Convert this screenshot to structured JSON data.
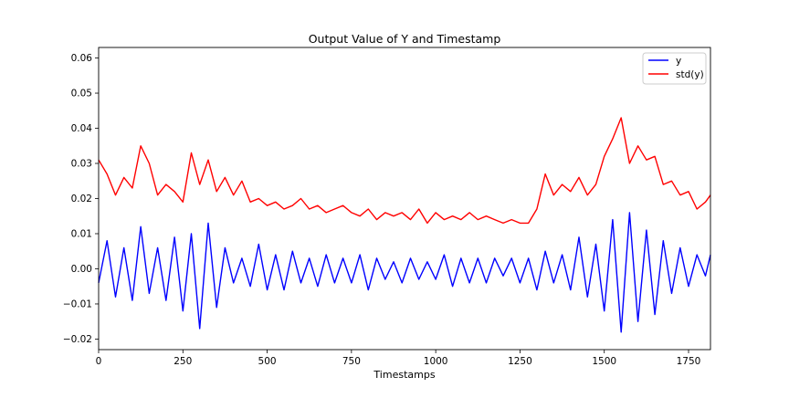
{
  "chart_data": {
    "type": "line",
    "title": "Output Value of Y and Timestamp",
    "xlabel": "Timestamps",
    "ylabel": "",
    "xlim": [
      0,
      1815
    ],
    "ylim": [
      -0.023,
      0.063
    ],
    "xticks": [
      0,
      250,
      500,
      750,
      1000,
      1250,
      1500,
      1750
    ],
    "xtick_labels": [
      "0",
      "250",
      "500",
      "750",
      "1000",
      "1250",
      "1500",
      "1750"
    ],
    "yticks": [
      -0.02,
      -0.01,
      0.0,
      0.01,
      0.02,
      0.03,
      0.04,
      0.05,
      0.06
    ],
    "ytick_labels": [
      "−0.02",
      "−0.01",
      "0.00",
      "0.01",
      "0.02",
      "0.03",
      "0.04",
      "0.05",
      "0.06"
    ],
    "grid": false,
    "legend_position": "top-right",
    "series": [
      {
        "name": "y",
        "color": "#0000ff",
        "x": [
          0,
          25,
          50,
          75,
          100,
          125,
          150,
          175,
          200,
          225,
          250,
          275,
          300,
          325,
          350,
          375,
          400,
          425,
          450,
          475,
          500,
          525,
          550,
          575,
          600,
          625,
          650,
          675,
          700,
          725,
          750,
          775,
          800,
          825,
          850,
          875,
          900,
          925,
          950,
          975,
          1000,
          1025,
          1050,
          1075,
          1100,
          1125,
          1150,
          1175,
          1200,
          1225,
          1250,
          1275,
          1300,
          1325,
          1350,
          1375,
          1400,
          1425,
          1450,
          1475,
          1500,
          1525,
          1550,
          1575,
          1600,
          1625,
          1650,
          1675,
          1700,
          1725,
          1750,
          1775,
          1800,
          1815
        ],
        "values": [
          -0.004,
          0.008,
          -0.008,
          0.006,
          -0.009,
          0.012,
          -0.007,
          0.006,
          -0.009,
          0.009,
          -0.012,
          0.01,
          -0.017,
          0.013,
          -0.011,
          0.006,
          -0.004,
          0.003,
          -0.005,
          0.007,
          -0.006,
          0.004,
          -0.006,
          0.005,
          -0.004,
          0.003,
          -0.005,
          0.004,
          -0.004,
          0.003,
          -0.004,
          0.004,
          -0.006,
          0.003,
          -0.003,
          0.002,
          -0.004,
          0.003,
          -0.003,
          0.002,
          -0.003,
          0.004,
          -0.005,
          0.003,
          -0.004,
          0.003,
          -0.004,
          0.003,
          -0.002,
          0.003,
          -0.004,
          0.003,
          -0.006,
          0.005,
          -0.004,
          0.004,
          -0.006,
          0.009,
          -0.008,
          0.007,
          -0.012,
          0.014,
          -0.018,
          0.016,
          -0.015,
          0.011,
          -0.013,
          0.008,
          -0.007,
          0.006,
          -0.005,
          0.004,
          -0.002,
          0.004
        ]
      },
      {
        "name": "std(y)",
        "color": "#ff0000",
        "x": [
          0,
          25,
          50,
          75,
          100,
          125,
          150,
          175,
          200,
          225,
          250,
          275,
          300,
          325,
          350,
          375,
          400,
          425,
          450,
          475,
          500,
          525,
          550,
          575,
          600,
          625,
          650,
          675,
          700,
          725,
          750,
          775,
          800,
          825,
          850,
          875,
          900,
          925,
          950,
          975,
          1000,
          1025,
          1050,
          1075,
          1100,
          1125,
          1150,
          1175,
          1200,
          1225,
          1250,
          1275,
          1300,
          1325,
          1350,
          1375,
          1400,
          1425,
          1450,
          1475,
          1500,
          1525,
          1550,
          1575,
          1600,
          1625,
          1650,
          1675,
          1700,
          1725,
          1750,
          1775,
          1800,
          1815
        ],
        "values": [
          0.031,
          0.027,
          0.021,
          0.026,
          0.023,
          0.035,
          0.03,
          0.021,
          0.024,
          0.022,
          0.019,
          0.033,
          0.024,
          0.031,
          0.022,
          0.026,
          0.021,
          0.025,
          0.019,
          0.02,
          0.018,
          0.019,
          0.017,
          0.018,
          0.02,
          0.017,
          0.018,
          0.016,
          0.017,
          0.018,
          0.016,
          0.015,
          0.017,
          0.014,
          0.016,
          0.015,
          0.016,
          0.014,
          0.017,
          0.013,
          0.016,
          0.014,
          0.015,
          0.014,
          0.016,
          0.014,
          0.015,
          0.014,
          0.013,
          0.014,
          0.013,
          0.013,
          0.017,
          0.027,
          0.021,
          0.024,
          0.022,
          0.026,
          0.021,
          0.024,
          0.032,
          0.037,
          0.043,
          0.03,
          0.035,
          0.031,
          0.032,
          0.024,
          0.025,
          0.021,
          0.022,
          0.017,
          0.019,
          0.021
        ]
      }
    ]
  }
}
